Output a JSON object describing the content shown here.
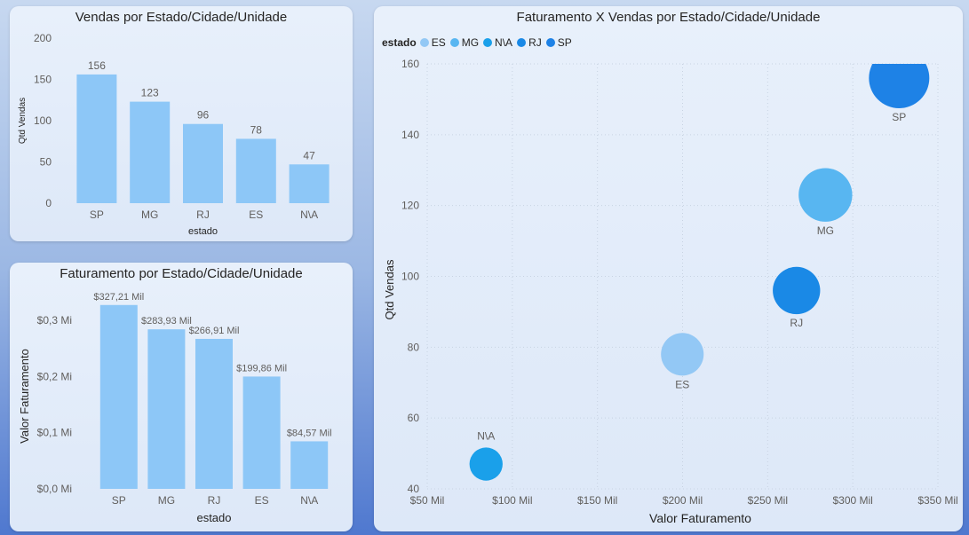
{
  "colors": {
    "bar": "#8dc7f7",
    "ES": "#93c8f5",
    "MG": "#58b6f1",
    "N\\A": "#1aa0ea",
    "RJ": "#1a89e6",
    "SP": "#1e82e6",
    "grid": "#c8d3e2",
    "text": "#252423",
    "axis_text": "#605e5c"
  },
  "chart_data": [
    {
      "type": "bar",
      "title": "Vendas por Estado/Cidade/Unidade",
      "xlabel": "estado",
      "ylabel": "Qtd Vendas",
      "categories": [
        "SP",
        "MG",
        "RJ",
        "ES",
        "N\\A"
      ],
      "values": [
        156,
        123,
        96,
        78,
        47
      ],
      "data_labels": [
        "156",
        "123",
        "96",
        "78",
        "47"
      ],
      "ylim": [
        0,
        200
      ],
      "yticks": [
        0,
        50,
        100,
        150,
        200
      ],
      "ytick_labels": [
        "0",
        "50",
        "100",
        "150",
        "200"
      ],
      "grid": false
    },
    {
      "type": "bar",
      "title": "Faturamento por Estado/Cidade/Unidade",
      "xlabel": "estado",
      "ylabel": "Valor Faturamento",
      "categories": [
        "SP",
        "MG",
        "RJ",
        "ES",
        "N\\A"
      ],
      "values": [
        327210,
        283930,
        266910,
        199860,
        84570
      ],
      "data_labels": [
        "$327,21 Mil",
        "$283,93 Mil",
        "$266,91 Mil",
        "$199,86 Mil",
        "$84,57 Mil"
      ],
      "ylim": [
        0,
        330000
      ],
      "yticks": [
        0,
        100000,
        200000,
        300000
      ],
      "ytick_labels": [
        "$0,0 Mi",
        "$0,1 Mi",
        "$0,2 Mi",
        "$0,3 Mi"
      ],
      "grid": false
    },
    {
      "type": "scatter",
      "title": "Faturamento X Vendas por Estado/Cidade/Unidade",
      "xlabel": "Valor Faturamento",
      "ylabel": "Qtd Vendas",
      "legend_title": "estado",
      "legend": [
        "ES",
        "MG",
        "N\\A",
        "RJ",
        "SP"
      ],
      "legend_position": "top-left",
      "points": [
        {
          "label": "SP",
          "x": 327210,
          "y": 156
        },
        {
          "label": "MG",
          "x": 283930,
          "y": 123
        },
        {
          "label": "RJ",
          "x": 266910,
          "y": 96
        },
        {
          "label": "ES",
          "x": 199860,
          "y": 78
        },
        {
          "label": "N\\A",
          "x": 84570,
          "y": 47
        }
      ],
      "xlim": [
        50000,
        350000
      ],
      "ylim": [
        40,
        160
      ],
      "xticks": [
        50000,
        100000,
        150000,
        200000,
        250000,
        300000,
        350000
      ],
      "xtick_labels": [
        "$50 Mil",
        "$100 Mil",
        "$150 Mil",
        "$200 Mil",
        "$250 Mil",
        "$300 Mil",
        "$350 Mil"
      ],
      "yticks": [
        40,
        60,
        80,
        100,
        120,
        140,
        160
      ],
      "ytick_labels": [
        "40",
        "60",
        "80",
        "100",
        "120",
        "140",
        "160"
      ],
      "grid": true
    }
  ]
}
